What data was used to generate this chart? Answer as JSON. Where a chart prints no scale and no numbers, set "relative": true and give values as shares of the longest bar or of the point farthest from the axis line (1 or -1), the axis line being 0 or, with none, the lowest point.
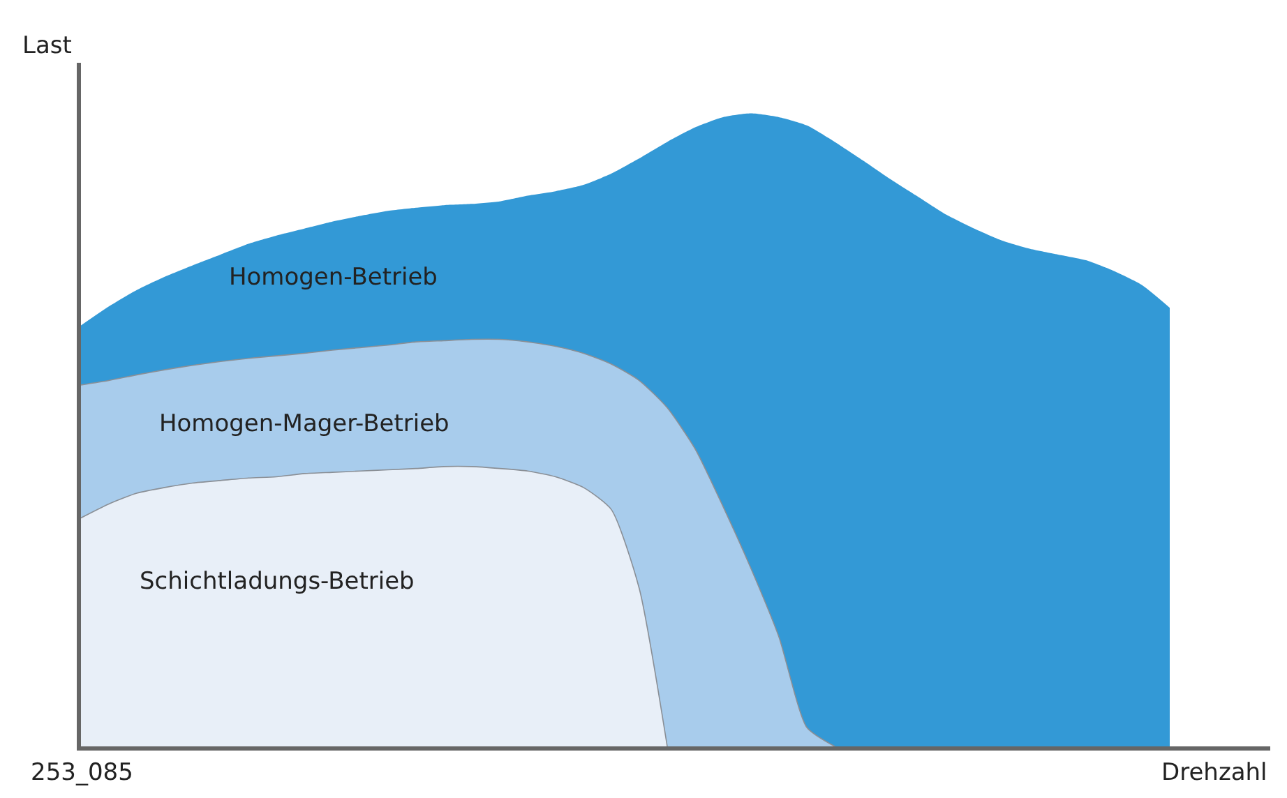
{
  "chart_data": {
    "type": "area",
    "relative": true,
    "xlabel": "Drehzahl",
    "ylabel": "Last",
    "annotations": [
      "253_085"
    ],
    "categories": [
      null,
      null,
      null,
      null,
      null,
      null,
      null,
      null,
      null,
      null,
      null,
      null,
      null,
      null,
      null,
      null,
      null,
      null,
      null,
      null,
      null,
      null,
      null,
      null,
      null,
      null,
      null,
      null,
      null,
      null,
      null,
      null,
      null,
      null,
      null,
      null,
      null,
      null,
      null,
      null,
      null,
      null,
      null
    ],
    "series": [
      {
        "name": "Homogen-Betrieb",
        "color": "#3399d6",
        "values": [
          0.665,
          0.695,
          0.721,
          0.742,
          0.76,
          0.777,
          0.794,
          0.807,
          0.818,
          0.829,
          0.838,
          0.846,
          0.851,
          0.855,
          0.857,
          0.861,
          0.87,
          0.877,
          0.887,
          0.905,
          0.929,
          0.955,
          0.978,
          0.994,
          1.0,
          0.994,
          0.981,
          0.955,
          0.926,
          0.896,
          0.868,
          0.84,
          0.818,
          0.799,
          0.786,
          0.777,
          0.768,
          0.751,
          0.729,
          0.693,
          null,
          null,
          null
        ]
      },
      {
        "name": "Homogen-Mager-Betrieb",
        "color": "#a8ccec",
        "values": [
          0.571,
          0.578,
          0.587,
          0.595,
          0.602,
          0.608,
          0.613,
          0.617,
          0.621,
          0.626,
          0.63,
          0.634,
          0.639,
          0.641,
          0.643,
          0.643,
          0.639,
          0.632,
          0.621,
          0.604,
          0.578,
          0.535,
          0.47,
          0.379,
          0.281,
          0.173,
          0.03,
          0,
          null,
          null,
          null,
          null,
          null,
          null,
          null,
          null,
          null,
          null,
          null,
          null,
          null,
          null,
          null
        ]
      },
      {
        "name": "Schichtladungs-Betrieb",
        "color": "#e8eff8",
        "values": [
          0.361,
          0.383,
          0.4,
          0.409,
          0.416,
          0.42,
          0.424,
          0.426,
          0.431,
          0.433,
          0.435,
          0.437,
          0.439,
          0.442,
          0.442,
          0.439,
          0.435,
          0.426,
          0.409,
          0.374,
          0.249,
          0,
          null,
          null,
          null,
          null,
          null,
          null,
          null,
          null,
          null,
          null,
          null,
          null,
          null,
          null,
          null,
          null,
          null,
          null,
          null,
          null,
          null
        ]
      }
    ]
  }
}
